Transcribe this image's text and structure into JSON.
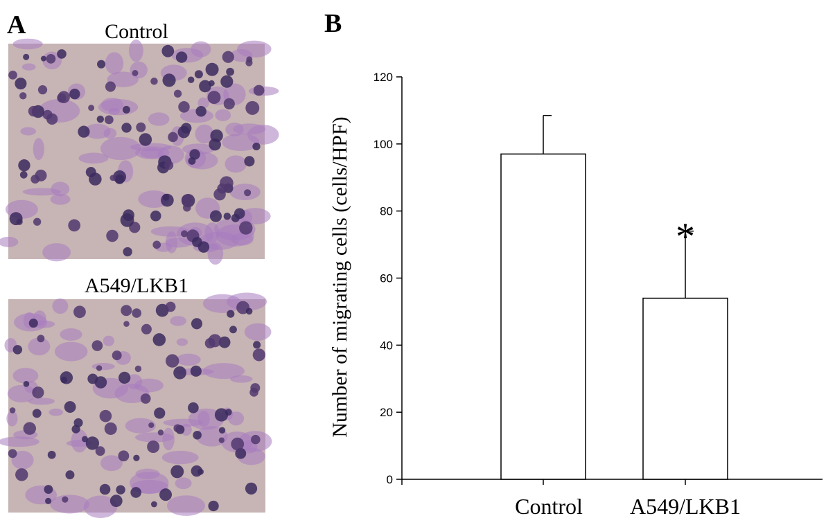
{
  "panel_a": {
    "label": "A",
    "captions": [
      "Control",
      "A549/LKB1"
    ]
  },
  "chart_data": {
    "type": "bar",
    "panel_label": "B",
    "y_label": "Number of migrating cells (cells/HPF)",
    "categories": [
      "Control",
      "A549/LKB1"
    ],
    "values": [
      97,
      54
    ],
    "errors": [
      11.5,
      20
    ],
    "annotation": "*",
    "color": "#ffffff",
    "ylim": [
      0,
      120
    ],
    "yticks": [
      0,
      20,
      40,
      60,
      80,
      100,
      120
    ],
    "grid": false
  }
}
